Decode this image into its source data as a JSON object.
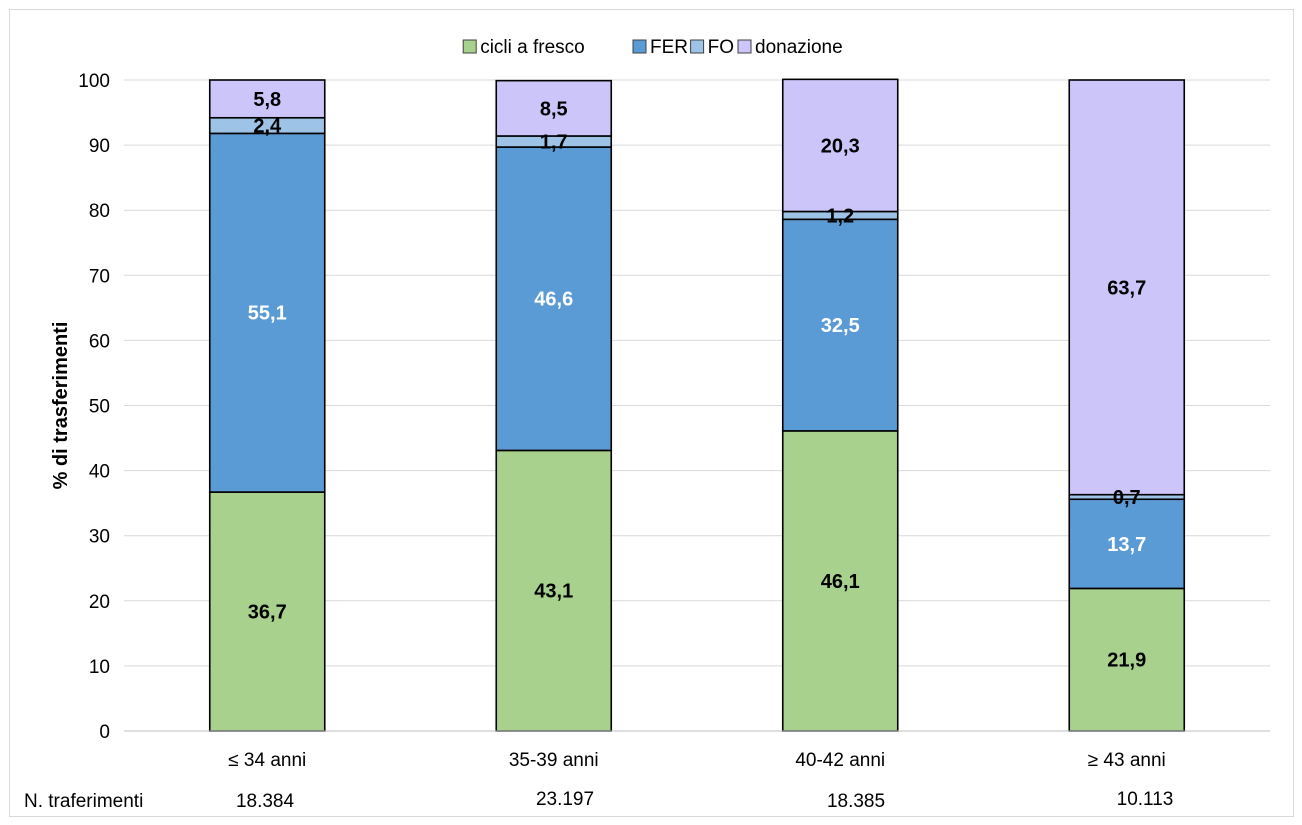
{
  "chart_data": {
    "type": "bar",
    "stacked": true,
    "categories": [
      "≤ 34 anni",
      "35-39 anni",
      "40-42 anni",
      "≥ 43 anni"
    ],
    "series": [
      {
        "name": "cicli a fresco",
        "values": [
          36.7,
          43.1,
          46.1,
          21.9
        ],
        "labels": [
          "36,7",
          "43,1",
          "46,1",
          "21,9"
        ],
        "color": "#a9d18e",
        "label_color": "#000000"
      },
      {
        "name": "FER",
        "values": [
          55.1,
          46.6,
          32.5,
          13.7
        ],
        "labels": [
          "55,1",
          "46,6",
          "32,5",
          "13,7"
        ],
        "color": "#5b9bd5",
        "label_color": "#ffffff"
      },
      {
        "name": "FO",
        "values": [
          2.4,
          1.7,
          1.2,
          0.7
        ],
        "labels": [
          "2,4",
          "1,7",
          "1,2",
          "0,7"
        ],
        "color": "#9dc3e6",
        "label_color": "#000000"
      },
      {
        "name": "donazione",
        "values": [
          5.8,
          8.5,
          20.3,
          63.7
        ],
        "labels": [
          "5,8",
          "8,5",
          "20,3",
          "63,7"
        ],
        "color": "#ccc5f9",
        "label_color": "#000000"
      }
    ],
    "ylabel": "% di trasferimenti",
    "xlabel": "",
    "ylim": [
      0,
      100
    ],
    "yticks": [
      0,
      10,
      20,
      30,
      40,
      50,
      60,
      70,
      80,
      90,
      100
    ],
    "grid": true,
    "legend_position": "top"
  },
  "footer": {
    "label": "N. traferimenti",
    "values": [
      "18.384",
      "23.197",
      "18.385",
      "10.113"
    ]
  }
}
